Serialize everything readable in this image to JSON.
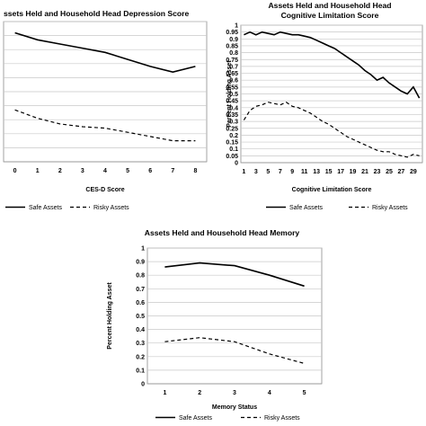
{
  "chart_data": [
    {
      "type": "line",
      "title": "ssets Held and Household Head Depression Score",
      "subtitle": "",
      "xlabel": "CES-D Score",
      "ylabel": "",
      "categories": [
        "0",
        "1",
        "2",
        "3",
        "4",
        "5",
        "6",
        "7",
        "8"
      ],
      "ylim": [
        0,
        1.0
      ],
      "grid": true,
      "legend": "bottom",
      "series": [
        {
          "name": "Safe Assets",
          "style": "solid",
          "values": [
            0.92,
            0.87,
            0.84,
            0.81,
            0.78,
            0.73,
            0.68,
            0.64,
            0.68
          ]
        },
        {
          "name": "Risky Assets",
          "style": "dashed",
          "values": [
            0.37,
            0.31,
            0.27,
            0.25,
            0.24,
            0.21,
            0.18,
            0.15,
            0.15
          ]
        }
      ]
    },
    {
      "type": "line",
      "title": "Assets Held and Household Head",
      "subtitle": "Cognitive Limitation Score",
      "xlabel": "Cognitive Limitation Score",
      "ylabel": "Percent Holding Asset",
      "categories": [
        "1",
        "2",
        "3",
        "4",
        "5",
        "6",
        "7",
        "8",
        "9",
        "10",
        "11",
        "12",
        "13",
        "14",
        "15",
        "16",
        "17",
        "18",
        "19",
        "20",
        "21",
        "22",
        "23",
        "24",
        "25",
        "26",
        "27",
        "28",
        "29",
        "30"
      ],
      "category_labels": [
        "1",
        "3",
        "5",
        "7",
        "9",
        "11",
        "13",
        "15",
        "17",
        "19",
        "21",
        "23",
        "25",
        "27",
        "29"
      ],
      "yticks": [
        "0",
        "0.05",
        "0.1",
        "0.15",
        "0.2",
        "0.25",
        "0.3",
        "0.35",
        "0.4",
        "0.45",
        "0.5",
        "0.55",
        "0.6",
        "0.65",
        "0.7",
        "0.75",
        "0.8",
        "0.85",
        "0.9",
        "0.95",
        "1"
      ],
      "ylim": [
        0,
        1.0
      ],
      "grid": true,
      "legend": "bottom",
      "series": [
        {
          "name": "Safe Assets",
          "style": "solid",
          "values": [
            0.93,
            0.95,
            0.93,
            0.95,
            0.94,
            0.93,
            0.95,
            0.94,
            0.93,
            0.93,
            0.92,
            0.91,
            0.89,
            0.87,
            0.85,
            0.83,
            0.8,
            0.77,
            0.74,
            0.71,
            0.67,
            0.64,
            0.6,
            0.62,
            0.58,
            0.55,
            0.52,
            0.5,
            0.55,
            0.47
          ]
        },
        {
          "name": "Risky Assets",
          "style": "dashed",
          "values": [
            0.31,
            0.38,
            0.41,
            0.42,
            0.44,
            0.43,
            0.42,
            0.44,
            0.41,
            0.4,
            0.38,
            0.36,
            0.33,
            0.3,
            0.28,
            0.25,
            0.22,
            0.19,
            0.17,
            0.15,
            0.13,
            0.11,
            0.09,
            0.08,
            0.08,
            0.06,
            0.05,
            0.04,
            0.06,
            0.05
          ]
        }
      ]
    },
    {
      "type": "line",
      "title": "Assets Held and Household Head Memory",
      "subtitle": "",
      "xlabel": "Memory Status",
      "ylabel": "Percent Holding Asset",
      "categories": [
        "1",
        "2",
        "3",
        "4",
        "5"
      ],
      "yticks": [
        "0",
        "0.1",
        "0.2",
        "0.3",
        "0.4",
        "0.5",
        "0.6",
        "0.7",
        "0.8",
        "0.9",
        "1"
      ],
      "ylim": [
        0,
        1.0
      ],
      "grid": true,
      "legend": "bottom",
      "series": [
        {
          "name": "Safe Assets",
          "style": "solid",
          "values": [
            0.86,
            0.89,
            0.87,
            0.8,
            0.72
          ]
        },
        {
          "name": "Risky Assets",
          "style": "dashed",
          "values": [
            0.31,
            0.34,
            0.31,
            0.22,
            0.15
          ]
        }
      ]
    }
  ]
}
